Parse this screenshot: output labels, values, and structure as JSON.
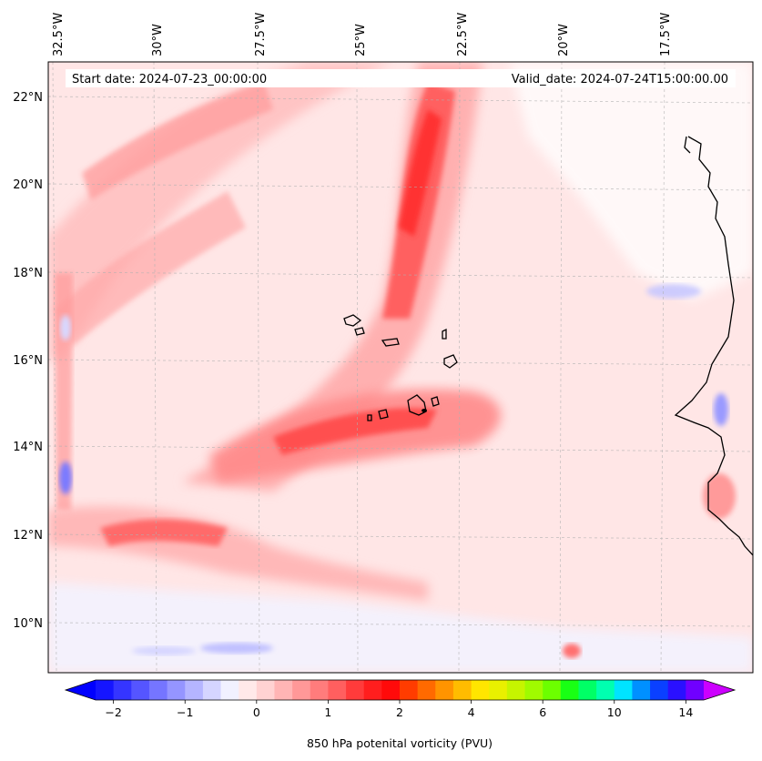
{
  "map": {
    "start_label": "Start date: 2024-07-23_00:00:00",
    "valid_label": "Valid_date: 2024-07-24T15:00:00.00",
    "lon_labels": [
      "32.5°W",
      "30°W",
      "27.5°W",
      "25°W",
      "22.5°W",
      "20°W",
      "17.5°W"
    ],
    "lat_labels": [
      "22°N",
      "20°N",
      "18°N",
      "16°N",
      "14°N",
      "12°N",
      "10°N"
    ]
  },
  "colorbar": {
    "label": "850 hPa potenital vorticity (PVU)",
    "tick_labels": [
      "−2",
      "−1",
      "0",
      "1",
      "2",
      "4",
      "6",
      "10",
      "14"
    ],
    "colors": [
      "#1515ff",
      "#3535ff",
      "#5555ff",
      "#7575ff",
      "#9595ff",
      "#b5b5ff",
      "#d5d5ff",
      "#f1f1ff",
      "#ffe9e9",
      "#ffd2d2",
      "#ffb5b5",
      "#ff9898",
      "#ff7c7c",
      "#ff5f5f",
      "#ff3b3b",
      "#ff1e1e",
      "#ff0a0a",
      "#ff3c00",
      "#ff6a00",
      "#ff9400",
      "#ffbc00",
      "#ffe600",
      "#e9f000",
      "#c6f500",
      "#a0fb00",
      "#6cff00",
      "#19ff14",
      "#00ff66",
      "#00ffb0",
      "#00e4ff",
      "#0090ff",
      "#0a40ff",
      "#2a10ff",
      "#7000ff"
    ],
    "under_color": "#0000ff",
    "over_color": "#cc00ff"
  }
}
